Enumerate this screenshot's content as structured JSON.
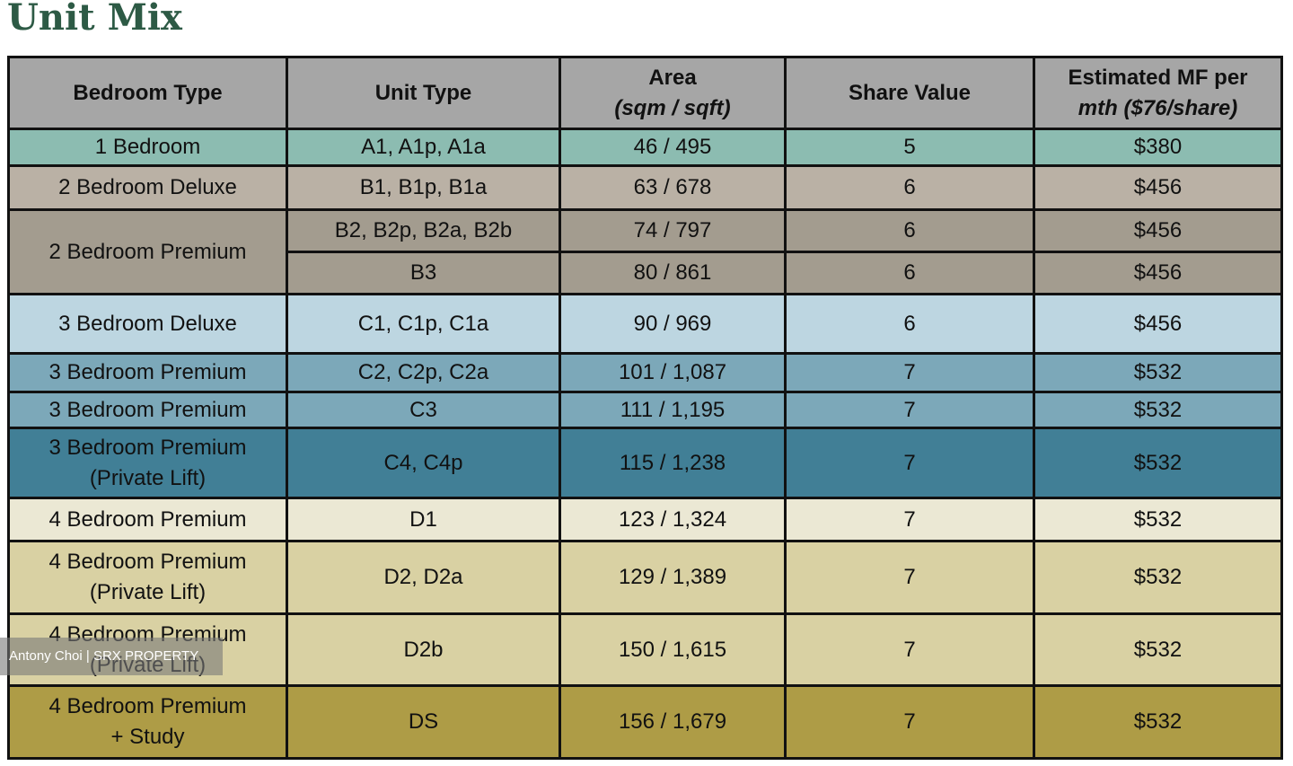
{
  "title": "Unit Mix",
  "table": {
    "header": [
      [
        "Bedroom Type"
      ],
      [
        "Unit Type"
      ],
      [
        "Area",
        "(sqm / sqft)"
      ],
      [
        "Share Value"
      ],
      [
        "Estimated MF per",
        "mth ($76/share)"
      ]
    ],
    "header_color": "#a6a6a6",
    "rows": [
      {
        "bedroom_type": [
          "1 Bedroom"
        ],
        "color": "#8cbcb1",
        "units": [
          {
            "unit_type": "A1, A1p, A1a",
            "area": "46 / 495",
            "share_value": 5,
            "mf": "$380"
          }
        ]
      },
      {
        "bedroom_type": [
          "2 Bedroom Deluxe"
        ],
        "color": "#bab1a5",
        "units": [
          {
            "unit_type": "B1, B1p, B1a",
            "area": "63 / 678",
            "share_value": 6,
            "mf": "$456"
          }
        ]
      },
      {
        "bedroom_type": [
          "2 Bedroom Premium"
        ],
        "color": "#a39c8f",
        "units": [
          {
            "unit_type": "B2, B2p, B2a, B2b",
            "area": "74 / 797",
            "share_value": 6,
            "mf": "$456"
          },
          {
            "unit_type": "B3",
            "area": "80 / 861",
            "share_value": 6,
            "mf": "$456"
          }
        ]
      },
      {
        "bedroom_type": [
          "3 Bedroom Deluxe"
        ],
        "color": "#bdd6e1",
        "units": [
          {
            "unit_type": "C1, C1p, C1a",
            "area": "90 / 969",
            "share_value": 6,
            "mf": "$456"
          }
        ]
      },
      {
        "bedroom_type": [
          "3 Bedroom Premium"
        ],
        "color": "#7ca8b9",
        "units": [
          {
            "unit_type": "C2, C2p, C2a",
            "area": "101 / 1,087",
            "share_value": 7,
            "mf": "$532"
          }
        ]
      },
      {
        "bedroom_type": [
          "3 Bedroom Premium"
        ],
        "color": "#7ca8b9",
        "units": [
          {
            "unit_type": "C3",
            "area": "111 / 1,195",
            "share_value": 7,
            "mf": "$532"
          }
        ]
      },
      {
        "bedroom_type": [
          "3 Bedroom Premium",
          "(Private Lift)"
        ],
        "color": "#417f96",
        "units": [
          {
            "unit_type": "C4, C4p",
            "area": "115 / 1,238",
            "share_value": 7,
            "mf": "$532"
          }
        ]
      },
      {
        "bedroom_type": [
          "4 Bedroom Premium"
        ],
        "color": "#ebe8d4",
        "units": [
          {
            "unit_type": "D1",
            "area": "123 / 1,324",
            "share_value": 7,
            "mf": "$532"
          }
        ]
      },
      {
        "bedroom_type": [
          "4 Bedroom Premium",
          "(Private Lift)"
        ],
        "color": "#d9d1a3",
        "units": [
          {
            "unit_type": "D2, D2a",
            "area": "129 / 1,389",
            "share_value": 7,
            "mf": "$532"
          }
        ]
      },
      {
        "bedroom_type": [
          "4 Bedroom Premium",
          "(Private Lift)"
        ],
        "color": "#d9d1a3",
        "units": [
          {
            "unit_type": "D2b",
            "area": "150 / 1,615",
            "share_value": 7,
            "mf": "$532"
          }
        ]
      },
      {
        "bedroom_type": [
          "4 Bedroom Premium",
          "+ Study"
        ],
        "color": "#ae9c46",
        "units": [
          {
            "unit_type": "DS",
            "area": "156 / 1,679",
            "share_value": 7,
            "mf": "$532"
          }
        ]
      }
    ]
  },
  "watermark": "Antony Choi | SRX PROPERTY"
}
